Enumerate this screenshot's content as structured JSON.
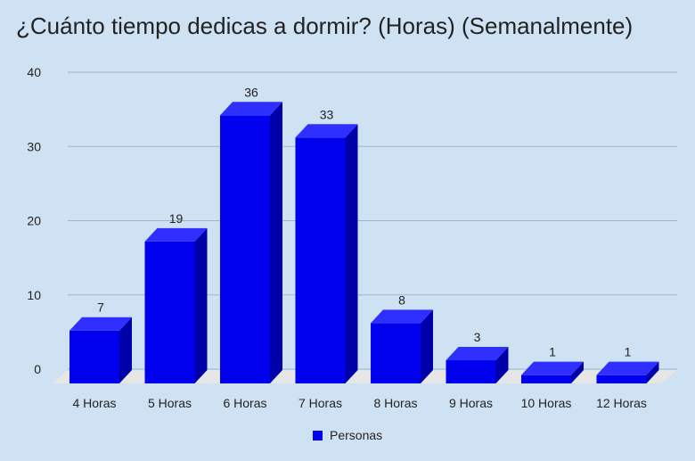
{
  "chart_data": {
    "type": "bar",
    "title": "¿Cuánto tiempo dedicas a dormir? (Horas) (Semanalmente)",
    "categories": [
      "4 Horas",
      "5 Horas",
      "6 Horas",
      "7 Horas",
      "8 Horas",
      "9 Horas",
      "10 Horas",
      "12 Horas"
    ],
    "series": [
      {
        "name": "Personas",
        "values": [
          7,
          19,
          36,
          33,
          8,
          3,
          1,
          1
        ]
      }
    ],
    "ylim": [
      0,
      40
    ],
    "yticks": [
      0,
      10,
      20,
      30,
      40
    ],
    "grid": true,
    "legend": "bottom",
    "colors": {
      "bar_front": "#0000ee",
      "bar_top": "#2f2fff",
      "bar_side": "#0000a8",
      "floor": "#e6e6e6",
      "grid": "#9fb4c8",
      "background": "#cfe2f3"
    }
  }
}
